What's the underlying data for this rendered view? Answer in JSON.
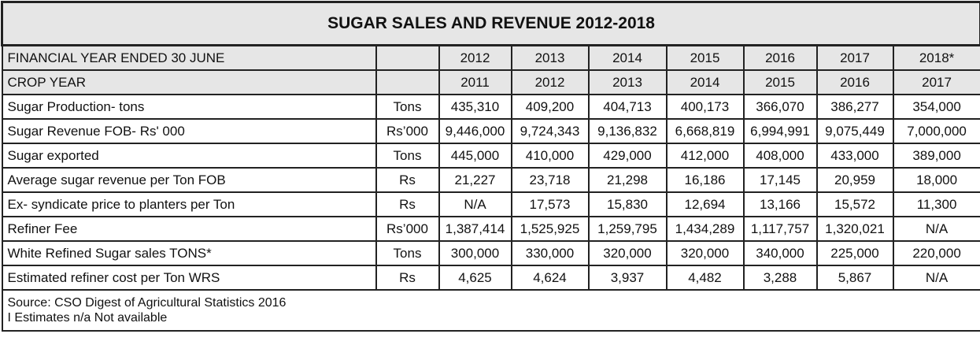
{
  "title": "SUGAR SALES AND REVENUE 2012-2018",
  "header_rows": [
    {
      "label": "FINANCIAL YEAR ENDED 30 JUNE",
      "unit": "",
      "values": [
        "2012",
        "2013",
        "2014",
        "2015",
        "2016",
        "2017",
        "2018*"
      ]
    },
    {
      "label": "CROP YEAR",
      "unit": "",
      "values": [
        "2011",
        "2012",
        "2013",
        "2014",
        "2015",
        "2016",
        "2017"
      ]
    }
  ],
  "rows": [
    {
      "label": "Sugar Production- tons",
      "unit": "Tons",
      "values": [
        "435,310",
        "409,200",
        "404,713",
        "400,173",
        "366,070",
        "386,277",
        "354,000"
      ]
    },
    {
      "label": "Sugar Revenue FOB- Rs' 000",
      "unit": "Rs’000",
      "values": [
        "9,446,000",
        "9,724,343",
        "9,136,832",
        "6,668,819",
        "6,994,991",
        "9,075,449",
        "7,000,000"
      ]
    },
    {
      "label": "Sugar  exported",
      "unit": "Tons",
      "values": [
        "445,000",
        "410,000",
        "429,000",
        "412,000",
        "408,000",
        "433,000",
        "389,000"
      ]
    },
    {
      "label": "Average sugar revenue per Ton FOB",
      "unit": "Rs",
      "values": [
        "21,227",
        "23,718",
        "21,298",
        "16,186",
        "17,145",
        "20,959",
        "18,000"
      ]
    },
    {
      "label": "Ex- syndicate price to planters per Ton",
      "unit": "Rs",
      "values": [
        "N/A",
        "17,573",
        "15,830",
        "12,694",
        "13,166",
        "15,572",
        "11,300"
      ]
    },
    {
      "label": "Refiner Fee",
      "unit": "Rs’000",
      "values": [
        "1,387,414",
        "1,525,925",
        "1,259,795",
        "1,434,289",
        "1,117,757",
        "1,320,021",
        "N/A"
      ]
    },
    {
      "label": "White Refined Sugar sales TONS*",
      "unit": "Tons",
      "values": [
        "300,000",
        "330,000",
        "320,000",
        "320,000",
        "340,000",
        "225,000",
        "220,000"
      ]
    },
    {
      "label": "Estimated refiner cost per Ton WRS",
      "unit": "Rs",
      "values": [
        "4,625",
        "4,624",
        "3,937",
        "4,482",
        "3,288",
        "5,867",
        "N/A"
      ]
    }
  ],
  "footer": {
    "line1": "Source:  CSO Digest of Agricultural Statistics 2016",
    "line2": "I Estimates n/a  Not available"
  }
}
